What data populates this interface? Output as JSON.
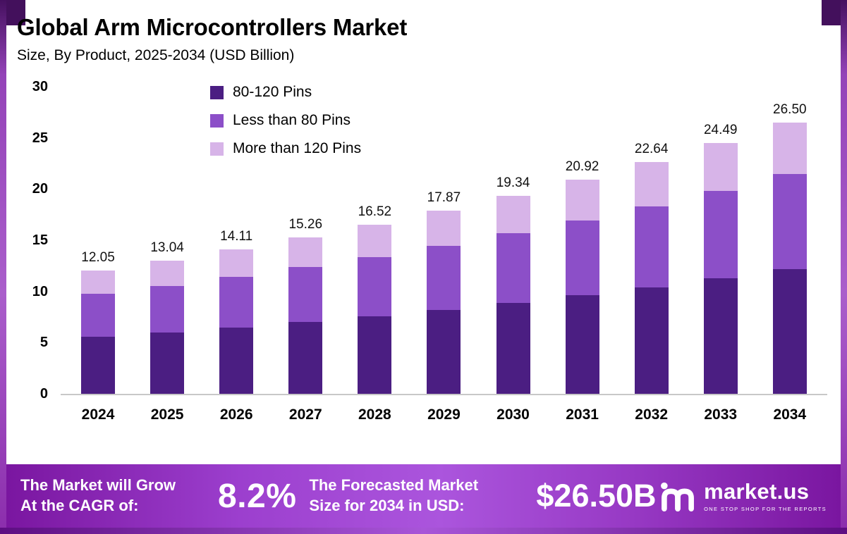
{
  "header": {
    "title": "Global Arm Microcontrollers Market",
    "subtitle": "Size, By Product, 2025-2034 (USD Billion)"
  },
  "chart_data": {
    "type": "bar",
    "stacked": true,
    "title": "Global Arm Microcontrollers Market",
    "subtitle": "Size, By Product, 2025-2034 (USD Billion)",
    "unit": "USD Billion",
    "categories": [
      "2024",
      "2025",
      "2026",
      "2027",
      "2028",
      "2029",
      "2030",
      "2031",
      "2032",
      "2033",
      "2034"
    ],
    "totals": [
      12.05,
      13.04,
      14.11,
      15.26,
      16.52,
      17.87,
      19.34,
      20.92,
      22.64,
      24.49,
      26.5
    ],
    "total_labels": [
      "12.05",
      "13.04",
      "14.11",
      "15.26",
      "16.52",
      "17.87",
      "19.34",
      "20.92",
      "22.64",
      "24.49",
      "26.50"
    ],
    "series": [
      {
        "name": "80-120 Pins",
        "color": "#4b1e82",
        "values": [
          5.54,
          6.0,
          6.49,
          7.02,
          7.6,
          8.22,
          8.9,
          9.62,
          10.41,
          11.27,
          12.19
        ]
      },
      {
        "name": "Less than 80 Pins",
        "color": "#8c4fc8",
        "values": [
          4.22,
          4.56,
          4.94,
          5.34,
          5.78,
          6.25,
          6.77,
          7.32,
          7.92,
          8.57,
          9.28
        ]
      },
      {
        "name": "More than 120 Pins",
        "color": "#d7b4e8",
        "values": [
          2.29,
          2.48,
          2.68,
          2.9,
          3.14,
          3.4,
          3.67,
          3.98,
          4.31,
          4.65,
          5.03
        ]
      }
    ],
    "ylim": [
      0,
      30
    ],
    "yticks": [
      0,
      5,
      10,
      15,
      20,
      25,
      30
    ],
    "grid": false,
    "legend_position": "inside-top-left",
    "xlabel": "",
    "ylabel": ""
  },
  "banner": {
    "cagr_label_line1": "The Market will Grow",
    "cagr_label_line2": "At the CAGR of:",
    "cagr_value": "8.2%",
    "forecast_label_line1": "The Forecasted Market",
    "forecast_label_line2": "Size for 2034 in USD:",
    "forecast_value": "$26.50B",
    "brand_name": "market.us",
    "brand_tagline": "ONE STOP SHOP FOR THE REPORTS",
    "gradient": [
      "#7a16a0",
      "#ab55dd",
      "#7a16a0"
    ]
  },
  "frame": {
    "side_color": "#9443b8",
    "corner_color": "#43105c"
  }
}
